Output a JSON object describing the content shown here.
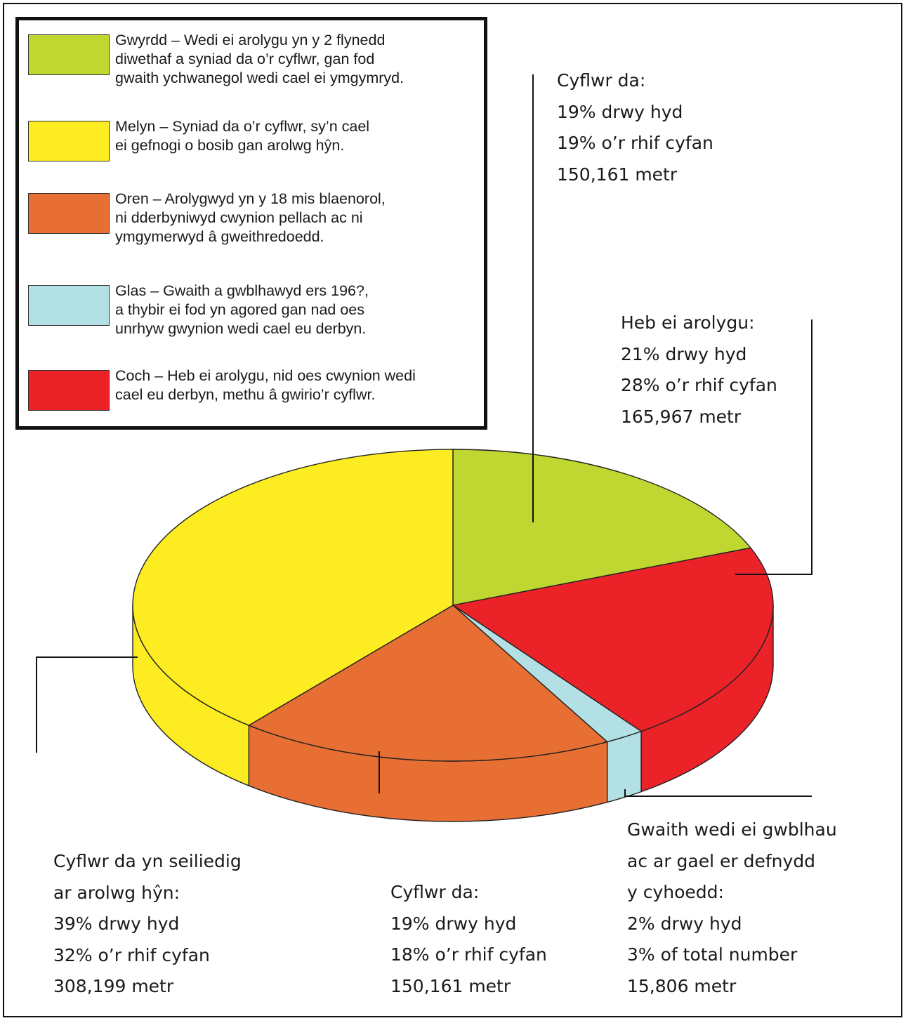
{
  "legend": {
    "items": [
      {
        "color": "#bfd730",
        "text": "Gwyrdd – Wedi ei arolygu yn y 2 flynedd\ndiwethaf a syniad da o’r cyflwr, gan fod\ngwaith ychwanegol wedi cael ei ymgymryd."
      },
      {
        "color": "#fcec21",
        "text": "Melyn – Syniad da o’r cyflwr, sy’n cael\nei gefnogi o bosib gan arolwg hŷn."
      },
      {
        "color": "#e86f33",
        "text": "Oren – Arolygwyd yn y 18 mis blaenorol,\nni dderbyniwyd cwynion pellach ac ni\nymgymerwyd â gweithredoedd."
      },
      {
        "color": "#b3e0e4",
        "text": "Glas – Gwaith a gwblhawyd ers 196?,\na thybir ei fod yn agored gan nad oes\nunrhyw gwynion wedi cael eu derbyn."
      },
      {
        "color": "#ec2229",
        "text": "Coch – Heb ei arolygu, nid oes cwynion wedi\ncael eu derbyn, methu â gwirio’r cyflwr."
      }
    ]
  },
  "chart_data": {
    "type": "pie",
    "style": "3d",
    "series": [
      {
        "name": "Gwyrdd",
        "color": "#bfd730",
        "value_percent_length": 19,
        "labels": [
          "Cyflwr da:",
          "19% drwy hyd",
          "19% o’r rhif cyfan",
          "150,161 metr"
        ]
      },
      {
        "name": "Coch",
        "color": "#ec2229",
        "value_percent_length": 21,
        "labels": [
          "Heb ei arolygu:",
          "21% drwy hyd",
          "28% o’r rhif cyfan",
          "165,967 metr"
        ]
      },
      {
        "name": "Glas",
        "color": "#b3e0e4",
        "value_percent_length": 2,
        "labels": [
          "Gwaith wedi ei gwblhau",
          "ac ar gael er defnydd",
          "y cyhoedd:",
          "2% drwy hyd",
          "3% of total number",
          "15,806 metr"
        ]
      },
      {
        "name": "Oren",
        "color": "#e86f33",
        "value_percent_length": 19,
        "labels": [
          "Cyflwr da:",
          "19% drwy hyd",
          "18% o’r rhif cyfan",
          "150,161 metr"
        ]
      },
      {
        "name": "Melyn",
        "color": "#fcec21",
        "value_percent_length": 39,
        "labels": [
          "Cyflwr da yn seiliedig",
          "ar arolwg hŷn:",
          "39% drwy hyd",
          "32% o’r rhif cyfan",
          "308,199 metr"
        ]
      }
    ]
  }
}
